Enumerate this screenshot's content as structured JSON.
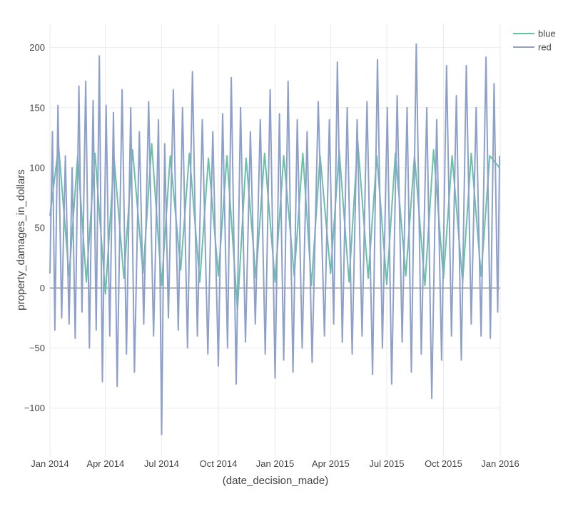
{
  "chart_data": {
    "type": "line",
    "xlabel": "(date_decision_made)",
    "ylabel": "property_damages_in_dollars",
    "x_range": [
      "2014-01-01",
      "2016-01-01"
    ],
    "ylim": [
      -140,
      220
    ],
    "x_ticks": [
      {
        "date": "2014-01-01",
        "label": "Jan 2014"
      },
      {
        "date": "2014-04-01",
        "label": "Apr 2014"
      },
      {
        "date": "2014-07-01",
        "label": "Jul 2014"
      },
      {
        "date": "2014-10-01",
        "label": "Oct 2014"
      },
      {
        "date": "2015-01-01",
        "label": "Jan 2015"
      },
      {
        "date": "2015-04-01",
        "label": "Apr 2015"
      },
      {
        "date": "2015-07-01",
        "label": "Jul 2015"
      },
      {
        "date": "2015-10-01",
        "label": "Oct 2015"
      },
      {
        "date": "2016-01-01",
        "label": "Jan 2016"
      }
    ],
    "y_ticks": [
      {
        "value": 200,
        "label": "200"
      },
      {
        "value": 150,
        "label": "150"
      },
      {
        "value": 100,
        "label": "100"
      },
      {
        "value": 50,
        "label": "50"
      },
      {
        "value": 0,
        "label": "0"
      },
      {
        "value": -50,
        "label": "−50"
      },
      {
        "value": -100,
        "label": "−100"
      }
    ],
    "grid": true,
    "legend_position": "top-right",
    "series": [
      {
        "name": "blue",
        "color": "#66c2a5",
        "points": [
          [
            "2014-01-01",
            60
          ],
          [
            "2014-01-15",
            118
          ],
          [
            "2014-02-01",
            10
          ],
          [
            "2014-02-15",
            110
          ],
          [
            "2014-03-01",
            5
          ],
          [
            "2014-03-15",
            112
          ],
          [
            "2014-04-01",
            -5
          ],
          [
            "2014-04-15",
            108
          ],
          [
            "2014-05-01",
            8
          ],
          [
            "2014-05-15",
            115
          ],
          [
            "2014-06-01",
            12
          ],
          [
            "2014-06-15",
            120
          ],
          [
            "2014-07-01",
            2
          ],
          [
            "2014-07-15",
            110
          ],
          [
            "2014-08-01",
            15
          ],
          [
            "2014-08-15",
            112
          ],
          [
            "2014-09-01",
            5
          ],
          [
            "2014-09-15",
            108
          ],
          [
            "2014-10-01",
            10
          ],
          [
            "2014-10-15",
            110
          ],
          [
            "2014-11-01",
            -18
          ],
          [
            "2014-11-15",
            108
          ],
          [
            "2014-12-01",
            8
          ],
          [
            "2014-12-15",
            112
          ],
          [
            "2015-01-01",
            5
          ],
          [
            "2015-01-15",
            110
          ],
          [
            "2015-02-01",
            10
          ],
          [
            "2015-02-15",
            112
          ],
          [
            "2015-03-01",
            2
          ],
          [
            "2015-03-15",
            110
          ],
          [
            "2015-04-01",
            12
          ],
          [
            "2015-04-15",
            114
          ],
          [
            "2015-05-01",
            5
          ],
          [
            "2015-05-15",
            122
          ],
          [
            "2015-06-01",
            8
          ],
          [
            "2015-06-15",
            110
          ],
          [
            "2015-07-01",
            3
          ],
          [
            "2015-07-15",
            112
          ],
          [
            "2015-08-01",
            10
          ],
          [
            "2015-08-15",
            110
          ],
          [
            "2015-09-01",
            2
          ],
          [
            "2015-09-15",
            115
          ],
          [
            "2015-10-01",
            8
          ],
          [
            "2015-10-15",
            110
          ],
          [
            "2015-11-01",
            5
          ],
          [
            "2015-11-15",
            112
          ],
          [
            "2015-12-01",
            10
          ],
          [
            "2015-12-15",
            110
          ],
          [
            "2015-12-31",
            100
          ]
        ]
      },
      {
        "name": "red",
        "color": "#8da0cb",
        "points": [
          [
            "2014-01-01",
            12
          ],
          [
            "2014-01-05",
            130
          ],
          [
            "2014-01-09",
            -35
          ],
          [
            "2014-01-14",
            152
          ],
          [
            "2014-01-20",
            -25
          ],
          [
            "2014-01-26",
            110
          ],
          [
            "2014-02-01",
            -30
          ],
          [
            "2014-02-06",
            100
          ],
          [
            "2014-02-11",
            -42
          ],
          [
            "2014-02-17",
            168
          ],
          [
            "2014-02-22",
            -20
          ],
          [
            "2014-02-28",
            172
          ],
          [
            "2014-03-06",
            -50
          ],
          [
            "2014-03-12",
            156
          ],
          [
            "2014-03-17",
            -35
          ],
          [
            "2014-03-22",
            193
          ],
          [
            "2014-03-27",
            -78
          ],
          [
            "2014-04-02",
            152
          ],
          [
            "2014-04-08",
            -40
          ],
          [
            "2014-04-14",
            146
          ],
          [
            "2014-04-20",
            -82
          ],
          [
            "2014-04-28",
            165
          ],
          [
            "2014-05-05",
            -55
          ],
          [
            "2014-05-12",
            150
          ],
          [
            "2014-05-18",
            -70
          ],
          [
            "2014-05-26",
            130
          ],
          [
            "2014-06-02",
            -30
          ],
          [
            "2014-06-10",
            155
          ],
          [
            "2014-06-18",
            -40
          ],
          [
            "2014-06-26",
            140
          ],
          [
            "2014-07-01",
            -122
          ],
          [
            "2014-07-06",
            120
          ],
          [
            "2014-07-12",
            -25
          ],
          [
            "2014-07-20",
            165
          ],
          [
            "2014-07-28",
            -35
          ],
          [
            "2014-08-04",
            150
          ],
          [
            "2014-08-12",
            -50
          ],
          [
            "2014-08-20",
            180
          ],
          [
            "2014-08-28",
            -40
          ],
          [
            "2014-09-05",
            140
          ],
          [
            "2014-09-14",
            -55
          ],
          [
            "2014-09-22",
            130
          ],
          [
            "2014-10-01",
            -65
          ],
          [
            "2014-10-08",
            145
          ],
          [
            "2014-10-16",
            -50
          ],
          [
            "2014-10-22",
            175
          ],
          [
            "2014-10-30",
            -80
          ],
          [
            "2014-11-06",
            150
          ],
          [
            "2014-11-14",
            -45
          ],
          [
            "2014-11-22",
            130
          ],
          [
            "2014-11-30",
            -30
          ],
          [
            "2014-12-08",
            140
          ],
          [
            "2014-12-16",
            -55
          ],
          [
            "2014-12-24",
            165
          ],
          [
            "2015-01-01",
            -75
          ],
          [
            "2015-01-08",
            145
          ],
          [
            "2015-01-15",
            -60
          ],
          [
            "2015-01-22",
            172
          ],
          [
            "2015-01-30",
            -70
          ],
          [
            "2015-02-06",
            140
          ],
          [
            "2015-02-14",
            -50
          ],
          [
            "2015-02-22",
            130
          ],
          [
            "2015-03-02",
            -62
          ],
          [
            "2015-03-12",
            155
          ],
          [
            "2015-03-22",
            -40
          ],
          [
            "2015-03-30",
            140
          ],
          [
            "2015-04-06",
            -30
          ],
          [
            "2015-04-12",
            188
          ],
          [
            "2015-04-20",
            -45
          ],
          [
            "2015-04-28",
            150
          ],
          [
            "2015-05-06",
            -55
          ],
          [
            "2015-05-14",
            140
          ],
          [
            "2015-05-22",
            -40
          ],
          [
            "2015-05-30",
            155
          ],
          [
            "2015-06-08",
            -72
          ],
          [
            "2015-06-16",
            190
          ],
          [
            "2015-06-24",
            -50
          ],
          [
            "2015-07-02",
            150
          ],
          [
            "2015-07-09",
            -80
          ],
          [
            "2015-07-18",
            160
          ],
          [
            "2015-07-26",
            -45
          ],
          [
            "2015-08-03",
            150
          ],
          [
            "2015-08-10",
            -70
          ],
          [
            "2015-08-18",
            203
          ],
          [
            "2015-08-26",
            -55
          ],
          [
            "2015-09-04",
            150
          ],
          [
            "2015-09-12",
            -92
          ],
          [
            "2015-09-20",
            140
          ],
          [
            "2015-09-28",
            -60
          ],
          [
            "2015-10-06",
            185
          ],
          [
            "2015-10-14",
            -40
          ],
          [
            "2015-10-22",
            160
          ],
          [
            "2015-10-30",
            -60
          ],
          [
            "2015-11-07",
            185
          ],
          [
            "2015-11-15",
            -30
          ],
          [
            "2015-11-23",
            150
          ],
          [
            "2015-12-01",
            -40
          ],
          [
            "2015-12-09",
            192
          ],
          [
            "2015-12-16",
            -42
          ],
          [
            "2015-12-22",
            170
          ],
          [
            "2015-12-28",
            -20
          ],
          [
            "2015-12-31",
            110
          ]
        ]
      }
    ]
  }
}
